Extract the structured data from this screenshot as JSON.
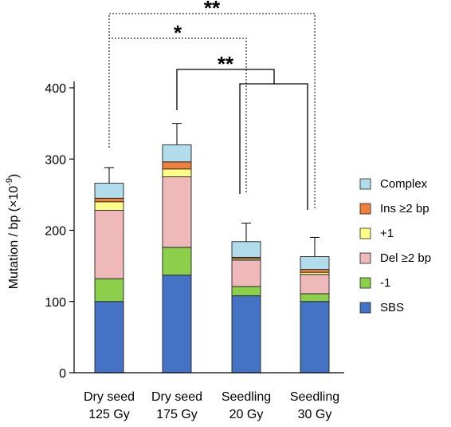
{
  "chart_data": {
    "type": "bar",
    "stacked": true,
    "ylabel": "Mutation / bp (×10",
    "ylabel_sup": "-9",
    "ylabel_close": ")",
    "ylim": [
      0,
      400
    ],
    "yticks": [
      0,
      100,
      200,
      300,
      400
    ],
    "categories": [
      {
        "line1": "Dry seed",
        "line2": "125 Gy"
      },
      {
        "line1": "Dry seed",
        "line2": "175 Gy"
      },
      {
        "line1": "Seedling",
        "line2": "20 Gy"
      },
      {
        "line1": "Seedling",
        "line2": "30 Gy"
      }
    ],
    "series": [
      {
        "name": "SBS",
        "color": "#4472c4",
        "values": [
          100,
          137,
          108,
          100
        ]
      },
      {
        "name": "-1",
        "color": "#8ccf4b",
        "values": [
          32,
          39,
          13,
          11
        ]
      },
      {
        "name": "Del ≥2 bp",
        "color": "#f0b9b9",
        "values": [
          96,
          99,
          37,
          27
        ]
      },
      {
        "name": "+1",
        "color": "#ffff88",
        "values": [
          12,
          11,
          2,
          3
        ]
      },
      {
        "name": "Ins ≥2 bp",
        "color": "#f0803c",
        "values": [
          5,
          10,
          2,
          4
        ]
      },
      {
        "name": "Complex",
        "color": "#b0dcec",
        "values": [
          21,
          24,
          22,
          18
        ]
      }
    ],
    "error_top": [
      288,
      350,
      210,
      190
    ],
    "legend_order": [
      "Complex",
      "Ins ≥2 bp",
      "+1",
      "Del ≥2 bp",
      "-1",
      "SBS"
    ],
    "legend_position": "right",
    "significance": [
      {
        "label": "**",
        "from": 0,
        "to": 3,
        "style": "dotted"
      },
      {
        "label": "*",
        "from": 0,
        "to": 2,
        "style": "dotted"
      },
      {
        "label": "**",
        "from": 1,
        "to": [
          2,
          3
        ],
        "style": "solid"
      }
    ]
  }
}
